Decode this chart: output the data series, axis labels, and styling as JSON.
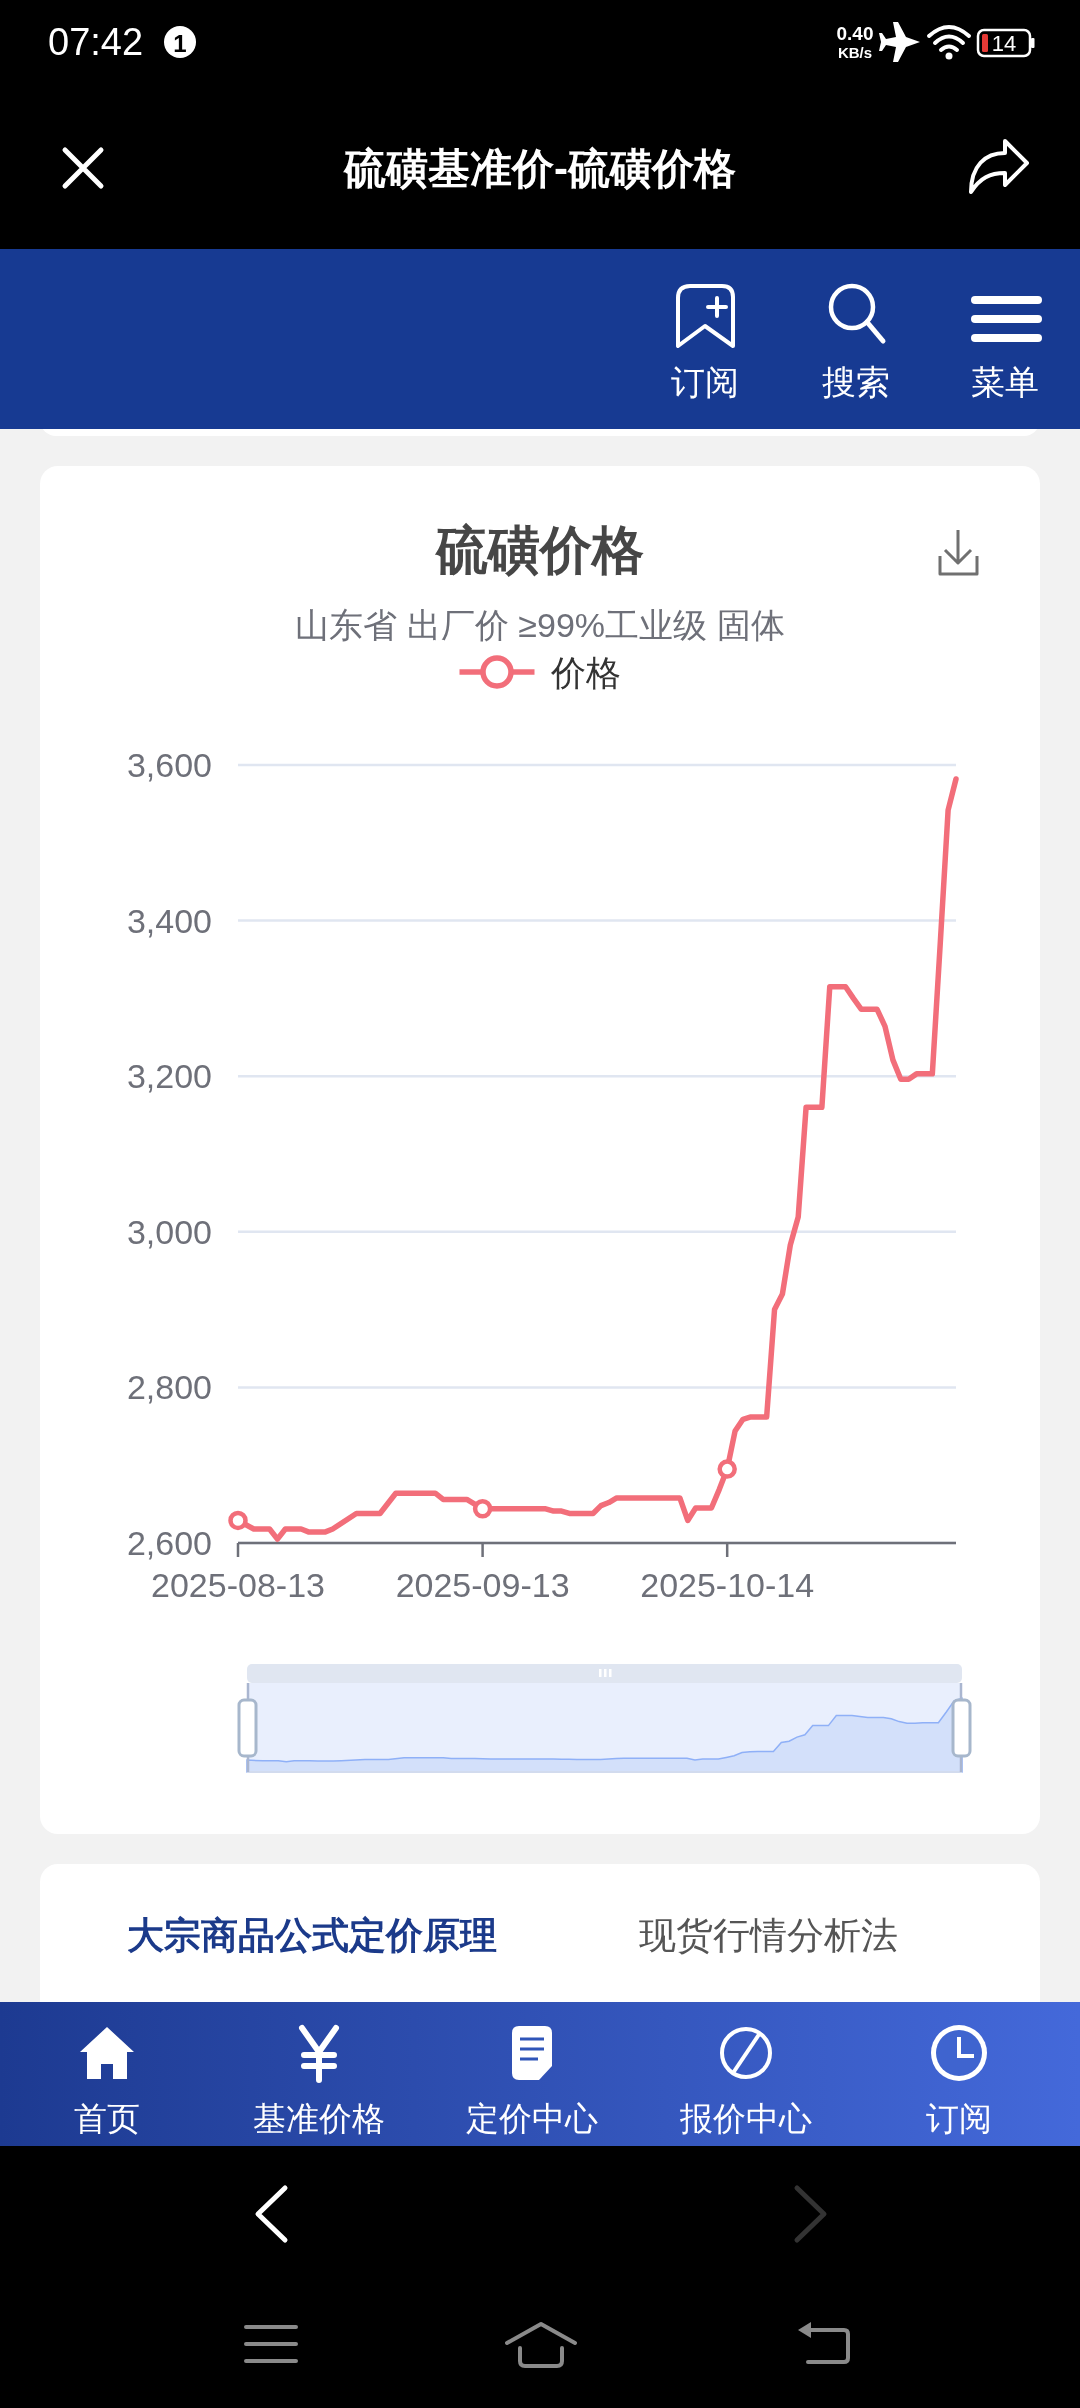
{
  "chart_data": {
    "type": "line",
    "title": "硫磺价格",
    "subtitle": "山东省 出厂价 ≥99%工业级 固体",
    "x": [
      "2025-08-13",
      "2025-08-15",
      "2025-08-17",
      "2025-08-18",
      "2025-08-19",
      "2025-08-21",
      "2025-08-22",
      "2025-08-24",
      "2025-08-25",
      "2025-08-28",
      "2025-08-31",
      "2025-09-02",
      "2025-09-07",
      "2025-09-08",
      "2025-09-11",
      "2025-09-12",
      "2025-09-13",
      "2025-09-21",
      "2025-09-22",
      "2025-09-23",
      "2025-09-24",
      "2025-09-27",
      "2025-09-28",
      "2025-09-29",
      "2025-09-30",
      "2025-10-08",
      "2025-10-09",
      "2025-10-10",
      "2025-10-12",
      "2025-10-13",
      "2025-10-14",
      "2025-10-15",
      "2025-10-16",
      "2025-10-17",
      "2025-10-19",
      "2025-10-20",
      "2025-10-21",
      "2025-10-22",
      "2025-10-23",
      "2025-10-24",
      "2025-10-26",
      "2025-10-27",
      "2025-10-29",
      "2025-10-30",
      "2025-10-31",
      "2025-11-02",
      "2025-11-03",
      "2025-11-04",
      "2025-11-05",
      "2025-11-06",
      "2025-11-07",
      "2025-11-09",
      "2025-11-10",
      "2025-11-11",
      "2025-11-12"
    ],
    "series": [
      {
        "name": "价格",
        "color": "#f26e7a",
        "marker": "none",
        "values": [
          2629,
          2618,
          2618,
          2605,
          2618,
          2618,
          2614,
          2614,
          2618,
          2638,
          2638,
          2664,
          2664,
          2656,
          2656,
          2650,
          2644,
          2644,
          2641,
          2641,
          2638,
          2638,
          2648,
          2652,
          2658,
          2658,
          2629,
          2645,
          2645,
          2669,
          2695,
          2744,
          2759,
          2762,
          2762,
          2900,
          2920,
          2983,
          3019,
          3160,
          3160,
          3315,
          3315,
          3300,
          3286,
          3286,
          3264,
          3221,
          3196,
          3196,
          3203,
          3203,
          3370,
          3542,
          3582
        ]
      },
      {
        "type": "scatter",
        "color": "#f26e7a",
        "x": [
          "2025-08-13",
          "2025-09-13",
          "2025-10-14"
        ],
        "values": [
          2629,
          2644,
          2695
        ]
      }
    ],
    "xlim": [
      "2025-08-13",
      "2025-11-12"
    ],
    "xticks": [
      "2025-08-13",
      "2025-09-13",
      "2025-10-14"
    ],
    "ylim": [
      2600,
      3600
    ],
    "yticks": [
      {
        "value": 2600,
        "label": "2,600"
      },
      {
        "value": 2800,
        "label": "2,800"
      },
      {
        "value": 3000,
        "label": "3,000"
      },
      {
        "value": 3200,
        "label": "3,200"
      },
      {
        "value": 3400,
        "label": "3,400"
      },
      {
        "value": 3600,
        "label": "3,600"
      }
    ],
    "grid": "y",
    "legend": "top",
    "marker": "circle",
    "annotations": [
      "07:42",
      "1",
      "0.40",
      "KB/s",
      "14",
      "硫磺基准价-硫磺价格",
      "订阅",
      "搜索",
      "菜单",
      "大宗商品公式定价原理",
      "现货行情分析法",
      "首页",
      "基准价格",
      "定价中心",
      "报价中心",
      "订阅"
    ]
  }
}
